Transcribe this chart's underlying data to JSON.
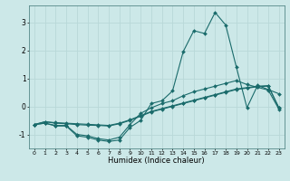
{
  "title": "",
  "xlabel": "Humidex (Indice chaleur)",
  "ylabel": "",
  "bg_color": "#cce8e8",
  "line_color": "#1a6b6b",
  "grid_color": "#b8d8d8",
  "xlim": [
    -0.5,
    23.5
  ],
  "ylim": [
    -1.5,
    3.6
  ],
  "yticks": [
    -1,
    0,
    1,
    2,
    3
  ],
  "xticks": [
    0,
    1,
    2,
    3,
    4,
    5,
    6,
    7,
    8,
    9,
    10,
    11,
    12,
    13,
    14,
    15,
    16,
    17,
    18,
    19,
    20,
    21,
    22,
    23
  ],
  "lines": [
    {
      "x": [
        0,
        1,
        2,
        3,
        4,
        5,
        6,
        7,
        8,
        9,
        10,
        11,
        12,
        13,
        14,
        15,
        16,
        17,
        18,
        19,
        20,
        21,
        22,
        23
      ],
      "y": [
        -0.65,
        -0.6,
        -0.7,
        -0.7,
        -1.05,
        -1.1,
        -1.2,
        -1.25,
        -1.2,
        -0.75,
        -0.5,
        0.1,
        0.2,
        0.55,
        1.95,
        2.7,
        2.6,
        3.35,
        2.9,
        1.4,
        -0.05,
        0.75,
        0.6,
        0.45
      ]
    },
    {
      "x": [
        0,
        1,
        2,
        3,
        4,
        5,
        6,
        7,
        8,
        9,
        10,
        11,
        12,
        13,
        14,
        15,
        16,
        17,
        18,
        19,
        20,
        21,
        22,
        23
      ],
      "y": [
        -0.65,
        -0.6,
        -0.68,
        -0.68,
        -1.0,
        -1.05,
        -1.15,
        -1.2,
        -1.1,
        -0.65,
        -0.25,
        -0.05,
        0.1,
        0.2,
        0.38,
        0.52,
        0.62,
        0.72,
        0.82,
        0.92,
        0.78,
        0.68,
        0.58,
        -0.1
      ]
    },
    {
      "x": [
        0,
        1,
        2,
        3,
        4,
        5,
        6,
        7,
        8,
        9,
        10,
        11,
        12,
        13,
        14,
        15,
        16,
        17,
        18,
        19,
        20,
        21,
        22,
        23
      ],
      "y": [
        -0.65,
        -0.55,
        -0.6,
        -0.62,
        -0.65,
        -0.67,
        -0.68,
        -0.7,
        -0.62,
        -0.5,
        -0.35,
        -0.2,
        -0.1,
        0.0,
        0.1,
        0.2,
        0.3,
        0.4,
        0.5,
        0.6,
        0.65,
        0.7,
        0.72,
        -0.05
      ]
    },
    {
      "x": [
        0,
        1,
        2,
        3,
        4,
        5,
        6,
        7,
        8,
        9,
        10,
        11,
        12,
        13,
        14,
        15,
        16,
        17,
        18,
        19,
        20,
        21,
        22,
        23
      ],
      "y": [
        -0.65,
        -0.55,
        -0.58,
        -0.6,
        -0.62,
        -0.64,
        -0.66,
        -0.68,
        -0.6,
        -0.48,
        -0.33,
        -0.18,
        -0.08,
        0.02,
        0.12,
        0.22,
        0.32,
        0.42,
        0.52,
        0.62,
        0.67,
        0.72,
        0.74,
        -0.05
      ]
    }
  ]
}
